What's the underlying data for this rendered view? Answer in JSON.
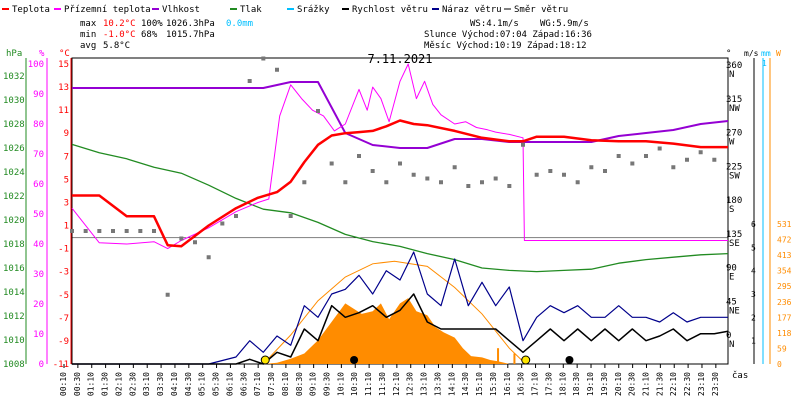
{
  "chart_data": {
    "type": "line",
    "title": "7.11.2021",
    "legend": [
      {
        "label": "Teplota",
        "color": "#ff0000"
      },
      {
        "label": "Přízemní teplota",
        "color": "#ff00ff"
      },
      {
        "label": "Vlhkost",
        "color": "#9400d3"
      },
      {
        "label": "Tlak",
        "color": "#228b22"
      },
      {
        "label": "Srážky",
        "color": "#00bfff"
      },
      {
        "label": "Rychlost větru",
        "color": "#000000"
      },
      {
        "label": "Náraz větru",
        "color": "#00008b"
      },
      {
        "label": "Směr větru",
        "color": "#808080"
      }
    ],
    "stats": {
      "max_label": "max",
      "max_temp": "10.2°C",
      "max_hum": "100%",
      "max_press": "1026.3hPa",
      "max_rain": "0.0mm",
      "min_label": "min",
      "min_temp": "-1.0°C",
      "min_hum": "68%",
      "min_press": "1015.7hPa",
      "avg_label": "avg",
      "avg_temp": "5.8°C",
      "ws": "WS:4.1m/s",
      "wg": "WG:5.9m/s",
      "sun": "Slunce Východ:07:04  Západ:16:36",
      "moon": "Měsíc  Východ:10:19  Západ:18:12"
    },
    "axis_units": {
      "hpa": "hPa",
      "pct": "%",
      "degc": "°C",
      "deg": "°",
      "ms": "m/s",
      "mm": "mm",
      "w": "W",
      "time": "čas"
    },
    "press_ticks": [
      "1032",
      "1030",
      "1028",
      "1026",
      "1024",
      "1022",
      "1020",
      "1018",
      "1016",
      "1014",
      "1012",
      "1010",
      "1008"
    ],
    "hum_ticks": [
      "100",
      "90",
      "80",
      "70",
      "60",
      "50",
      "40",
      "30",
      "20",
      "10",
      "0"
    ],
    "temp_ticks": [
      "15",
      "13",
      "11",
      "9",
      "7",
      "5",
      "3",
      "1",
      "-1",
      "-3",
      "-5",
      "-7",
      "-9",
      "-11"
    ],
    "dir_ticks": [
      {
        "deg": "360",
        "dir": "N"
      },
      {
        "deg": "315",
        "dir": "NW"
      },
      {
        "deg": "270",
        "dir": "W"
      },
      {
        "deg": "225",
        "dir": "SW"
      },
      {
        "deg": "180",
        "dir": "S"
      },
      {
        "deg": "135",
        "dir": "SE"
      },
      {
        "deg": "90",
        "dir": "E"
      },
      {
        "deg": "45",
        "dir": "NE"
      },
      {
        "deg": "0",
        "dir": "N"
      }
    ],
    "ms_ticks": [
      "6",
      "5",
      "4",
      "3",
      "2",
      "1"
    ],
    "ms_top": "1",
    "w_ticks": [
      "531",
      "472",
      "413",
      "354",
      "295",
      "236",
      "177",
      "118",
      "59",
      "0"
    ],
    "time_labels": [
      "00:10",
      "00:30",
      "01:10",
      "01:30",
      "02:10",
      "02:30",
      "03:10",
      "03:30",
      "04:10",
      "04:30",
      "05:10",
      "05:30",
      "06:10",
      "06:30",
      "07:10",
      "07:30",
      "08:10",
      "08:30",
      "09:10",
      "09:30",
      "10:10",
      "10:30",
      "11:10",
      "11:30",
      "12:10",
      "12:30",
      "13:10",
      "13:30",
      "14:10",
      "14:30",
      "15:10",
      "15:30",
      "16:10",
      "16:30",
      "17:10",
      "17:30",
      "18:10",
      "18:30",
      "19:10",
      "19:30",
      "20:10",
      "20:30",
      "21:10",
      "21:30",
      "22:10",
      "22:30",
      "23:10",
      "23:30"
    ],
    "x_range_hours": [
      0,
      24
    ],
    "grid": false,
    "temperature": {
      "hours": [
        0,
        1,
        2,
        3,
        3.5,
        4,
        5,
        6,
        6.8,
        7.5,
        8,
        8.5,
        9,
        9.5,
        10,
        10.5,
        11,
        11.5,
        12,
        12.5,
        13,
        14,
        15,
        16,
        16.5,
        17,
        18,
        19,
        20,
        21,
        22,
        23,
        24
      ],
      "values": [
        3.6,
        3.6,
        1.8,
        1.8,
        -0.7,
        -0.8,
        1.0,
        2.5,
        3.4,
        3.9,
        4.8,
        6.5,
        8.0,
        8.8,
        9.0,
        9.1,
        9.2,
        9.6,
        10.1,
        9.8,
        9.7,
        9.2,
        8.6,
        8.3,
        8.3,
        8.7,
        8.7,
        8.4,
        8.3,
        8.3,
        8.1,
        7.8,
        7.8
      ]
    },
    "ground_temperature": {
      "hours": [
        0,
        1,
        2,
        3,
        3.5,
        4,
        5,
        6,
        6.8,
        7.2,
        7.6,
        8,
        8.4,
        8.8,
        9.2,
        9.6,
        10,
        10.5,
        10.8,
        11,
        11.3,
        11.6,
        12,
        12.3,
        12.6,
        12.9,
        13.2,
        13.5,
        14,
        14.4,
        14.8,
        15.2,
        15.5,
        16,
        16.5,
        16.55,
        17,
        18,
        19,
        20,
        21,
        22,
        23,
        24
      ],
      "values": [
        2.5,
        -0.5,
        -0.6,
        -0.4,
        -1.0,
        -0.3,
        0.8,
        2.2,
        3.0,
        3.3,
        10.5,
        13.2,
        12.0,
        11.0,
        10.5,
        9.2,
        9.8,
        12.8,
        11.0,
        13.0,
        12.0,
        10.0,
        13.5,
        15.0,
        12.0,
        13.5,
        11.5,
        10.6,
        9.8,
        10.0,
        9.5,
        9.3,
        9.1,
        8.9,
        8.6,
        -0.3,
        -0.3,
        -0.3,
        -0.3,
        -0.3,
        -0.3,
        -0.3,
        -0.3,
        -0.3
      ]
    },
    "humidity": {
      "hours": [
        0,
        2,
        4,
        6,
        7,
        7.5,
        8,
        9,
        10,
        11,
        12,
        13,
        14,
        15,
        16,
        17,
        18,
        19,
        20,
        21,
        22,
        23,
        24
      ],
      "values": [
        92,
        92,
        92,
        92,
        92,
        93,
        94,
        94,
        77,
        73,
        72,
        72,
        75,
        75,
        74,
        74,
        74,
        74,
        76,
        77,
        78,
        80,
        81
      ]
    },
    "pressure": {
      "hours": [
        0,
        1,
        2,
        3,
        4,
        5,
        6,
        7,
        8,
        9,
        10,
        11,
        12,
        13,
        14,
        15,
        16,
        17,
        18,
        19,
        20,
        21,
        22,
        23,
        24
      ],
      "values": [
        1026.3,
        1025.6,
        1025.1,
        1024.4,
        1023.9,
        1022.9,
        1021.8,
        1020.9,
        1020.6,
        1019.8,
        1018.8,
        1018.2,
        1017.8,
        1017.2,
        1016.7,
        1016.0,
        1015.8,
        1015.7,
        1015.8,
        1015.9,
        1016.4,
        1016.7,
        1016.9,
        1017.1,
        1017.2
      ]
    },
    "wind_speed_ms": {
      "hours": [
        0,
        2,
        4,
        5,
        6,
        6.5,
        7,
        7.5,
        8,
        8.5,
        9,
        9.5,
        10,
        10.5,
        11,
        11.5,
        12,
        12.5,
        13,
        13.5,
        14,
        14.5,
        15,
        15.5,
        16,
        16.5,
        17,
        17.5,
        18,
        18.5,
        19,
        19.5,
        20,
        20.5,
        21,
        21.5,
        22,
        22.5,
        23,
        23.5,
        24
      ],
      "values": [
        0,
        0,
        0,
        0,
        0,
        0.2,
        0,
        0.5,
        0.3,
        1.5,
        1.0,
        2.5,
        2.0,
        2.2,
        2.5,
        2.0,
        2.3,
        3.0,
        1.8,
        1.5,
        1.5,
        1.5,
        1.5,
        1.5,
        1.0,
        0.5,
        1.0,
        1.5,
        1.0,
        1.5,
        1.0,
        1.5,
        1.0,
        1.5,
        1.0,
        1.2,
        1.5,
        1.0,
        1.3,
        1.3,
        1.4
      ]
    },
    "wind_gust_ms": {
      "hours": [
        0,
        2,
        4,
        5,
        6,
        6.5,
        7,
        7.5,
        8,
        8.5,
        9,
        9.5,
        10,
        10.5,
        11,
        11.5,
        12,
        12.5,
        13,
        13.5,
        14,
        14.5,
        15,
        15.5,
        16,
        16.5,
        17,
        17.5,
        18,
        18.5,
        19,
        19.5,
        20,
        20.5,
        21,
        21.5,
        22,
        22.5,
        23,
        23.5,
        24
      ],
      "values": [
        0,
        0,
        0,
        0,
        0.3,
        1.0,
        0.5,
        1.2,
        0.8,
        2.5,
        2.0,
        3.0,
        3.2,
        3.8,
        3.0,
        4.0,
        3.6,
        4.8,
        3.0,
        2.5,
        4.5,
        2.5,
        3.5,
        2.5,
        3.3,
        1.0,
        2.0,
        2.5,
        2.2,
        2.5,
        2.0,
        2.0,
        2.5,
        2.0,
        2.0,
        1.8,
        2.2,
        1.8,
        2.0,
        2.0,
        2.0
      ]
    },
    "wind_direction_deg": {
      "hours": [
        0,
        0.5,
        1,
        1.5,
        2,
        2.5,
        3,
        3.5,
        4,
        4.5,
        5,
        5.5,
        6,
        6.5,
        7,
        7.5,
        8,
        8.5,
        9,
        9.5,
        10,
        10.5,
        11,
        11.5,
        12,
        12.5,
        13,
        13.5,
        14,
        14.5,
        15,
        15.5,
        16,
        16.5,
        17,
        17.5,
        18,
        18.5,
        19,
        19.5,
        20,
        20.5,
        21,
        21.5,
        22,
        22.5,
        23,
        23.5
      ],
      "values": [
        140,
        140,
        140,
        140,
        140,
        140,
        140,
        55,
        130,
        125,
        105,
        150,
        160,
        340,
        370,
        355,
        160,
        205,
        300,
        230,
        205,
        240,
        220,
        205,
        230,
        215,
        210,
        205,
        225,
        200,
        205,
        210,
        200,
        255,
        215,
        220,
        215,
        205,
        225,
        220,
        240,
        230,
        240,
        250,
        225,
        235,
        245,
        235
      ]
    },
    "solar_radiation_w": {
      "hours": [
        0,
        7,
        7.5,
        8,
        8.5,
        9,
        9.5,
        10,
        10.3,
        10.6,
        11,
        11.3,
        11.6,
        12,
        12.3,
        12.6,
        13,
        13.3,
        13.6,
        14,
        14.3,
        14.6,
        15,
        15.3,
        15.6,
        16,
        16.3,
        16.6,
        24
      ],
      "values": [
        0,
        0,
        5,
        20,
        40,
        90,
        160,
        230,
        210,
        190,
        200,
        230,
        170,
        230,
        250,
        200,
        185,
        140,
        120,
        100,
        60,
        30,
        25,
        15,
        10,
        0,
        0,
        0,
        0
      ]
    },
    "solar_potential_w": {
      "hours": [
        7.0,
        8,
        9,
        10,
        11,
        11.8,
        13,
        14,
        15,
        16,
        16.6
      ],
      "values": [
        0,
        110,
        240,
        330,
        380,
        390,
        370,
        290,
        190,
        60,
        0
      ]
    }
  }
}
